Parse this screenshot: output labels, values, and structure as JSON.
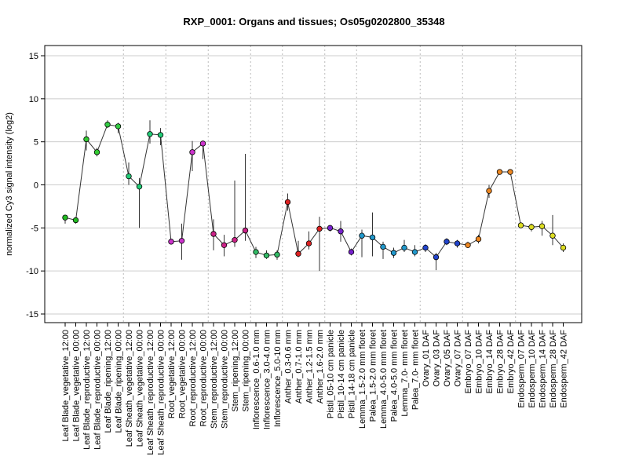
{
  "chart_data": {
    "type": "line",
    "title": "RXP_0001: Organs and tissues; Os05g0202800_35348",
    "xlabel": "",
    "ylabel": "normalized Cy3 signal intensity (log2)",
    "ylim": [
      -15,
      15
    ],
    "yticks": [
      -15,
      -10,
      -5,
      0,
      5,
      10,
      15
    ],
    "grid": "horizontal at y ticks; dotted vertical separators between groups",
    "categories": [
      "Leaf Blade_vegetative_12:00",
      "Leaf Blade_vegetative_00:00",
      "Leaf Blade_reproductive_12:00",
      "Leaf Blade_reproductive_00:00",
      "Leaf Blade_ripening_12:00",
      "Leaf Blade_ripening_00:00",
      "Leaf Sheath_vegetative_12:00",
      "Leaf Sheath_vegetative_00:00",
      "Leaf Sheath_reproductive_12:00",
      "Leaf Sheath_reproductive_00:00",
      "Root_vegetative_12:00",
      "Root_vegetative_00:00",
      "Root_reproductive_12:00",
      "Root_reproductive_00:00",
      "Stem_reproductive_12:00",
      "Stem_reproductive_00:00",
      "Stem_ripening_12:00",
      "Stem_ripening_00:00",
      "Inflorescence_0.6-1.0 mm",
      "Inflorescence_3.0-4.0 mm",
      "Inflorescence_5.0-10 mm",
      "Anther_0.3-0.6 mm",
      "Anther_0.7-1.0 mm",
      "Anther_1.2-1.5 mm",
      "Anther_1.6-2.0 mm",
      "Pistil_05-10 cm panicle",
      "Pistil_10-14 cm panicle",
      "Pistil_14-18 cm panicle",
      "Lemma_1.5-2.0 mm floret",
      "Palea_1.5-2.0 mm floret",
      "Lemma_4.0-5.0 mm floret",
      "Palea_4.0-5.0 mm floret",
      "Lemma_7.0- mm floret",
      "Palea_7.0- mm floret",
      "Ovary_01 DAF",
      "Ovary_03 DAF",
      "Ovary_05 DAF",
      "Ovary_07 DAF",
      "Embryo_07 DAF",
      "Embryo_10 DAF",
      "Embryo_14 DAF",
      "Embryo_28 DAF",
      "Embryo_42 DAF",
      "Endosperm_07 DAF",
      "Endosperm_10 DAF",
      "Endosperm_14 DAF",
      "Endosperm_28 DAF",
      "Endosperm_42 DAF"
    ],
    "values": [
      -3.8,
      -4.1,
      5.3,
      3.8,
      7.0,
      6.8,
      1.0,
      -0.2,
      5.9,
      5.8,
      -6.6,
      -6.5,
      3.8,
      4.8,
      -5.7,
      -7.0,
      -6.4,
      -5.3,
      -7.8,
      -8.2,
      -8.1,
      -2.0,
      -8.0,
      -6.8,
      -5.1,
      -5.0,
      -5.4,
      -7.8,
      -5.9,
      -6.1,
      -7.2,
      -7.9,
      -7.3,
      -7.8,
      -7.3,
      -8.4,
      -6.6,
      -6.8,
      -7.0,
      -6.3,
      -0.7,
      1.5,
      1.5,
      -4.7,
      -4.9,
      -4.8,
      -5.9,
      -7.3
    ],
    "error_low": [
      -4.5,
      -4.5,
      4.0,
      3.3,
      6.6,
      6.0,
      0.0,
      -5.0,
      4.8,
      4.6,
      -6.8,
      -8.7,
      1.6,
      3.0,
      -7.6,
      -8.3,
      -7.2,
      -6.5,
      -8.5,
      -8.6,
      -8.7,
      -3.0,
      -8.4,
      -7.5,
      -10.0,
      -5.4,
      -6.6,
      -8.2,
      -8.4,
      -8.3,
      -8.6,
      -8.5,
      -7.8,
      -8.3,
      -7.8,
      -9.9,
      -7.0,
      -7.3,
      -7.3,
      -6.8,
      -1.5,
      1.2,
      1.2,
      -5.0,
      -5.4,
      -5.9,
      -7.0,
      -7.8
    ],
    "error_high": [
      -3.6,
      -3.8,
      6.3,
      4.3,
      7.5,
      7.2,
      2.6,
      0.8,
      7.5,
      6.6,
      -6.4,
      -4.5,
      5.1,
      5.1,
      -4.0,
      -5.8,
      0.5,
      3.6,
      -7.2,
      -7.6,
      -7.6,
      -1.0,
      -6.5,
      -5.4,
      -3.7,
      -4.7,
      -4.2,
      -7.4,
      -5.2,
      -3.2,
      -6.6,
      -7.3,
      -6.4,
      -7.0,
      -6.9,
      -7.9,
      -6.2,
      -6.4,
      -6.6,
      -5.8,
      0.0,
      1.8,
      1.8,
      -4.4,
      -4.5,
      -4.2,
      -3.5,
      -6.8
    ],
    "colors": [
      "#22bb22",
      "#22bb22",
      "#33cc33",
      "#33cc33",
      "#33cc44",
      "#33cc44",
      "#22cc77",
      "#22cc77",
      "#22cc77",
      "#22cc77",
      "#cc33cc",
      "#cc33cc",
      "#cc33cc",
      "#cc33cc",
      "#cc2288",
      "#cc2288",
      "#cc2288",
      "#cc2288",
      "#33bb66",
      "#33bb66",
      "#33bb66",
      "#dd2222",
      "#dd2222",
      "#dd2222",
      "#dd2222",
      "#7722cc",
      "#7722cc",
      "#7722cc",
      "#2299cc",
      "#2299cc",
      "#2299cc",
      "#2299cc",
      "#2299cc",
      "#2299cc",
      "#2244cc",
      "#2244cc",
      "#2244cc",
      "#2244cc",
      "#ee8822",
      "#ee8822",
      "#ee8822",
      "#ee8822",
      "#ee8822",
      "#dddd22",
      "#dddd22",
      "#dddd22",
      "#dddd22",
      "#dddd22"
    ],
    "group_breaks_after": [
      5,
      9,
      13,
      17,
      20,
      24,
      27,
      33,
      37,
      42
    ]
  }
}
